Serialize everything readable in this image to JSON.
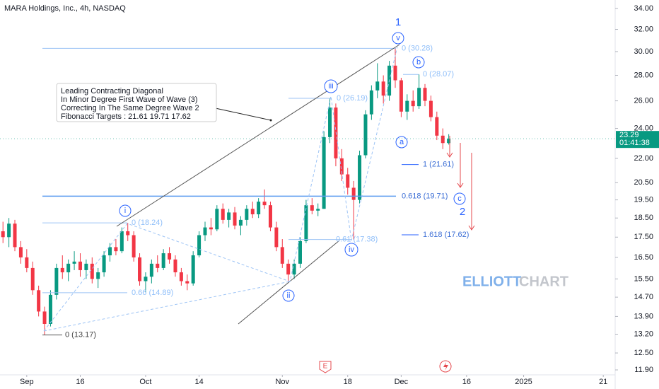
{
  "chart_data": {
    "type": "candlestick",
    "title": "MARA Holdings, Inc., 4h, NASDAQ",
    "log": true,
    "ylim": [
      11.73,
      34.85
    ],
    "yticks": [
      {
        "value": 34,
        "label": "34.00"
      },
      {
        "value": 32,
        "label": "32.00"
      },
      {
        "value": 30,
        "label": "30.00"
      },
      {
        "value": 28,
        "label": "28.00"
      },
      {
        "value": 26,
        "label": "26.00"
      },
      {
        "value": 24,
        "label": "24.00"
      },
      {
        "value": 22,
        "label": "22.00"
      },
      {
        "value": 20.5,
        "label": "20.50"
      },
      {
        "value": 19.5,
        "label": "19.50"
      },
      {
        "value": 18.5,
        "label": "18.50"
      },
      {
        "value": 17.5,
        "label": "17.50"
      },
      {
        "value": 16.5,
        "label": "16.50"
      },
      {
        "value": 15.5,
        "label": "15.50"
      },
      {
        "value": 14.7,
        "label": "14.70"
      },
      {
        "value": 13.9,
        "label": "13.90"
      },
      {
        "value": 13.2,
        "label": "13.20"
      },
      {
        "value": 12.5,
        "label": "12.50"
      },
      {
        "value": 11.9,
        "label": "11.90"
      }
    ],
    "xlim": [
      -0.5,
      103
    ],
    "xticks": [
      {
        "value": 4,
        "label": "Sep"
      },
      {
        "value": 13,
        "label": "16"
      },
      {
        "value": 24,
        "label": "Oct"
      },
      {
        "value": 33,
        "label": "14"
      },
      {
        "value": 47,
        "label": "Nov"
      },
      {
        "value": 58,
        "label": "18"
      },
      {
        "value": 67,
        "label": "Dec"
      },
      {
        "value": 78,
        "label": "16"
      },
      {
        "value": 87.6,
        "label": "2025"
      },
      {
        "value": 101,
        "label": "21"
      }
    ],
    "up_color": "#089981",
    "down_color": "#f23645",
    "candles": [
      [
        17.8,
        18.3,
        17.2,
        17.5
      ],
      [
        17.5,
        18.5,
        17.0,
        18.2
      ],
      [
        18.2,
        18.4,
        16.8,
        17.0
      ],
      [
        17.0,
        17.3,
        16.2,
        16.5
      ],
      [
        16.5,
        16.9,
        15.8,
        16.0
      ],
      [
        16.0,
        16.3,
        14.8,
        15.0
      ],
      [
        15.0,
        15.2,
        13.9,
        14.1
      ],
      [
        14.1,
        14.3,
        13.17,
        13.6
      ],
      [
        13.6,
        15.0,
        13.5,
        14.8
      ],
      [
        14.8,
        16.2,
        14.6,
        16.0
      ],
      [
        16.0,
        16.6,
        15.5,
        15.8
      ],
      [
        15.8,
        16.4,
        15.4,
        16.2
      ],
      [
        16.2,
        16.8,
        15.9,
        16.3
      ],
      [
        16.3,
        16.7,
        15.6,
        15.9
      ],
      [
        15.9,
        16.4,
        15.5,
        16.2
      ],
      [
        16.2,
        16.5,
        15.3,
        15.5
      ],
      [
        15.5,
        16.0,
        15.1,
        15.8
      ],
      [
        15.8,
        16.8,
        15.6,
        16.6
      ],
      [
        16.6,
        17.2,
        16.3,
        17.0
      ],
      [
        17.0,
        17.4,
        16.6,
        16.8
      ],
      [
        16.8,
        18.0,
        16.7,
        17.8
      ],
      [
        17.8,
        18.24,
        17.3,
        17.6
      ],
      [
        17.6,
        17.8,
        16.3,
        16.5
      ],
      [
        16.5,
        16.7,
        15.2,
        15.4
      ],
      [
        15.4,
        15.8,
        14.9,
        15.6
      ],
      [
        15.6,
        16.4,
        15.3,
        16.2
      ],
      [
        16.2,
        16.6,
        15.8,
        16.0
      ],
      [
        16.0,
        16.9,
        15.9,
        16.7
      ],
      [
        16.7,
        17.0,
        16.2,
        16.4
      ],
      [
        16.4,
        16.6,
        15.6,
        15.8
      ],
      [
        15.8,
        16.0,
        15.2,
        15.4
      ],
      [
        15.4,
        15.7,
        15.0,
        15.3
      ],
      [
        15.3,
        16.8,
        15.2,
        16.6
      ],
      [
        16.6,
        17.8,
        16.5,
        17.6
      ],
      [
        17.6,
        18.3,
        17.3,
        18.0
      ],
      [
        18.0,
        18.5,
        17.6,
        17.9
      ],
      [
        17.9,
        19.2,
        17.8,
        19.0
      ],
      [
        19.0,
        19.3,
        18.2,
        18.4
      ],
      [
        18.4,
        19.0,
        18.0,
        18.8
      ],
      [
        18.8,
        19.1,
        17.9,
        18.1
      ],
      [
        18.1,
        18.6,
        17.6,
        18.4
      ],
      [
        18.4,
        19.2,
        18.1,
        19.0
      ],
      [
        19.0,
        19.4,
        18.5,
        18.7
      ],
      [
        18.7,
        19.6,
        18.5,
        19.4
      ],
      [
        19.4,
        20.1,
        19.0,
        19.2
      ],
      [
        19.2,
        19.4,
        17.8,
        18.0
      ],
      [
        18.0,
        18.3,
        16.8,
        17.0
      ],
      [
        17.0,
        17.4,
        16.0,
        16.2
      ],
      [
        16.2,
        16.4,
        15.4,
        15.7
      ],
      [
        15.7,
        16.4,
        15.5,
        16.2
      ],
      [
        16.2,
        17.5,
        16.0,
        17.3
      ],
      [
        17.3,
        19.5,
        17.2,
        19.2
      ],
      [
        19.2,
        19.6,
        18.7,
        18.9
      ],
      [
        18.9,
        19.3,
        18.6,
        19.0
      ],
      [
        19.0,
        23.8,
        19.0,
        23.4
      ],
      [
        23.4,
        26.19,
        23.0,
        25.5
      ],
      [
        25.5,
        25.8,
        21.5,
        22.0
      ],
      [
        22.0,
        22.6,
        20.6,
        21.0
      ],
      [
        21.0,
        21.4,
        19.8,
        20.2
      ],
      [
        20.2,
        20.6,
        17.38,
        19.5
      ],
      [
        19.5,
        22.5,
        19.3,
        22.2
      ],
      [
        22.2,
        25.3,
        22.0,
        25.0
      ],
      [
        25.0,
        27.2,
        24.6,
        26.8
      ],
      [
        26.8,
        29.0,
        26.2,
        27.5
      ],
      [
        27.5,
        28.0,
        25.8,
        26.4
      ],
      [
        26.4,
        29.2,
        26.0,
        28.8
      ],
      [
        28.8,
        30.28,
        27.0,
        27.6
      ],
      [
        27.6,
        27.8,
        24.8,
        25.2
      ],
      [
        25.2,
        26.5,
        24.6,
        26.0
      ],
      [
        26.0,
        26.8,
        25.2,
        25.6
      ],
      [
        25.6,
        28.07,
        25.4,
        27.0
      ],
      [
        27.0,
        27.3,
        25.6,
        26.0
      ],
      [
        26.0,
        26.4,
        24.5,
        24.8
      ],
      [
        24.8,
        25.2,
        23.2,
        23.5
      ],
      [
        23.5,
        24.0,
        22.6,
        23.0
      ],
      [
        23.0,
        23.6,
        22.9,
        23.29
      ]
    ],
    "levels": [
      {
        "value": 30.28,
        "label": "0 (30.28)"
      },
      {
        "value": 28.07,
        "label": "0 (28.07)"
      },
      {
        "value": 26.19,
        "label": "0 (26.19)"
      },
      {
        "value": 18.24,
        "label": "0 (18.24)"
      },
      {
        "value": 14.89,
        "label": "0.66 (14.89)"
      },
      {
        "value": 13.17,
        "label": "0 (13.17)"
      },
      {
        "value": 17.38,
        "label": "0.61 (17.38)"
      },
      {
        "value": 21.61,
        "label": "1 (21.61)"
      },
      {
        "value": 19.71,
        "label": "0.618 (19.71)"
      },
      {
        "value": 17.62,
        "label": "1.618 (17.62)"
      }
    ],
    "waves": [
      "1",
      "v",
      "b",
      "iii",
      "a",
      "i",
      "c",
      "2",
      "iv",
      "ii"
    ],
    "annotation": [
      "Leading Contracting Diagonal",
      "In Minor Degree First Wave of Wave (3)",
      "Correcting In The Same Degree Wave 2",
      "Fibonacci Targets : 21.61   19.71   17.62"
    ],
    "watermark": [
      "ELLIOTT",
      "CHART"
    ],
    "last_price": {
      "value": 23.29,
      "label": "23.29",
      "countdown": "01:41:38"
    },
    "events": [
      "E"
    ]
  }
}
